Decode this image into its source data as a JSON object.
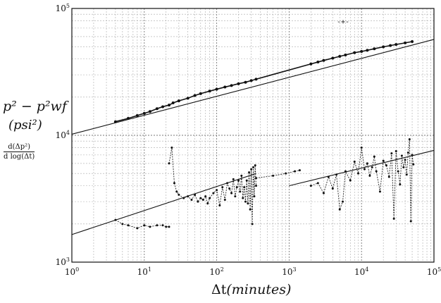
{
  "chart_data": {
    "type": "scatter",
    "xscale": "log",
    "yscale": "log",
    "xlim": [
      1,
      100000
    ],
    "ylim": [
      1000,
      100000
    ],
    "grid": true,
    "xticks": [
      {
        "value": 1,
        "base": "10",
        "exp": "0"
      },
      {
        "value": 10,
        "base": "10",
        "exp": "1"
      },
      {
        "value": 100,
        "base": "10",
        "exp": "2"
      },
      {
        "value": 1000,
        "base": "10",
        "exp": "3"
      },
      {
        "value": 10000,
        "base": "10",
        "exp": "4"
      },
      {
        "value": 100000,
        "base": "10",
        "exp": "5"
      }
    ],
    "yticks": [
      {
        "value": 1000,
        "base": "10",
        "exp": "3"
      },
      {
        "value": 10000,
        "base": "10",
        "exp": "4"
      },
      {
        "value": 100000,
        "base": "10",
        "exp": "5"
      }
    ],
    "ylabel_line1": "p² − p²wf",
    "ylabel_line2": "(psi²)",
    "ylabel_deriv_num": "d(Δp²)",
    "ylabel_deriv_den": "d log(Δt)",
    "xlabel_prefix": "Δt",
    "xlabel_unit": "(minutes)",
    "series": [
      {
        "kind": "pressure",
        "x": [
          4,
          6,
          8,
          10,
          12,
          15,
          18,
          22,
          25,
          30,
          40,
          50,
          60,
          80,
          100,
          130,
          160,
          200,
          250,
          300,
          350,
          2000,
          2500,
          3000,
          4000,
          5000,
          6000,
          8000,
          10000,
          12000,
          15000,
          20000,
          25000,
          30000,
          40000,
          50000
        ],
        "y": [
          12800,
          13600,
          14300,
          14900,
          15400,
          16200,
          16800,
          17300,
          18000,
          18700,
          19600,
          20600,
          21300,
          22300,
          23100,
          24000,
          24700,
          25500,
          26200,
          27000,
          27700,
          36500,
          37800,
          38900,
          40600,
          41900,
          43000,
          44800,
          45800,
          46800,
          48100,
          49800,
          51000,
          52000,
          53500,
          54800
        ]
      },
      {
        "kind": "derivative",
        "segments": [
          {
            "x": [
              4,
              5,
              6,
              8,
              10,
              12,
              15,
              18,
              20,
              22
            ],
            "y": [
              2150,
              2000,
              1950,
              1850,
              1950,
              1900,
              1950,
              1950,
              1900,
              1900
            ]
          },
          {
            "x": [
              22,
              24,
              26,
              28,
              30,
              35,
              40,
              45,
              50,
              55,
              60,
              65,
              70,
              75,
              80,
              90,
              100,
              110,
              120,
              130,
              140,
              150,
              160,
              170,
              180,
              190,
              200,
              210,
              220,
              230,
              240,
              250,
              260,
              270,
              280,
              290,
              300,
              310,
              320,
              330,
              340,
              350
            ],
            "y": [
              6000,
              8000,
              4200,
              3600,
              3400,
              3200,
              3300,
              3100,
              3400,
              3000,
              3200,
              3100,
              3300,
              2900,
              3200,
              3500,
              3700,
              2800,
              3900,
              3100,
              4200,
              3800,
              3500,
              4500,
              3300,
              3900,
              4400,
              3600,
              4800,
              3200,
              3900,
              3000,
              4400,
              2900,
              5100,
              2600,
              5400,
              2000,
              5600,
              3300,
              5800,
              4000
            ]
          },
          {
            "x": [
              350,
              600,
              900,
              1200,
              1400
            ],
            "y": [
              4600,
              4800,
              5000,
              5200,
              5300
            ]
          },
          {
            "x": [
              2000,
              2500,
              3000,
              3500,
              4000,
              4500,
              5000,
              5500,
              6000,
              7000,
              8000,
              9000,
              10000,
              11000,
              12000,
              13000,
              14000,
              15000,
              16000,
              18000,
              20000,
              22000,
              24000,
              26000,
              28000,
              30000,
              32000,
              34000,
              36000,
              38000,
              40000,
              42000,
              44000,
              46000,
              48000,
              50000,
              52000
            ],
            "y": [
              4000,
              4200,
              3500,
              4700,
              3800,
              4900,
              2600,
              3000,
              5200,
              4400,
              6200,
              5000,
              8000,
              5400,
              6000,
              4800,
              5600,
              6800,
              5200,
              3600,
              6300,
              5800,
              4700,
              7200,
              2200,
              7500,
              5200,
              4100,
              6900,
              5600,
              6400,
              4900,
              7300,
              9300,
              2100,
              7000,
              5900
            ]
          }
        ]
      }
    ],
    "fit_lines": [
      {
        "x": [
          1,
          100000
        ],
        "y": [
          10200,
          57000
        ]
      },
      {
        "x": [
          1,
          350
        ],
        "y": [
          1650,
          5000
        ]
      },
      {
        "x": [
          1000,
          100000
        ],
        "y": [
          4000,
          7600
        ]
      }
    ],
    "annotation": "-+-"
  }
}
